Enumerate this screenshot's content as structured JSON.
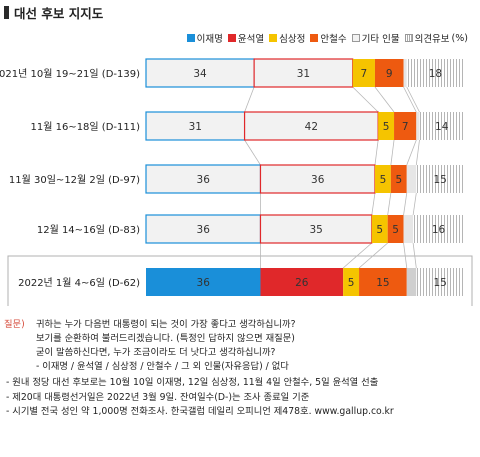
{
  "title": "대선 후보 지지도",
  "legend_unit": "(%)",
  "colors": {
    "lee": "#1a8fd9",
    "yoon": "#e0282a",
    "sim": "#f5c400",
    "ahn": "#ee5a10",
    "other": "#d6d6d6",
    "reserved": "#c8c8c8",
    "highlight_border": "#b0b0b0",
    "connector": "#b8b8b8"
  },
  "chart_data": {
    "type": "bar",
    "orientation": "horizontal",
    "stacked": true,
    "unit": "%",
    "legend_position": "top-right",
    "categories": [
      "2021년 10월 19~21일 (D-139)",
      "11월 16~18일 (D-111)",
      "11월 30일~12월 2일 (D-97)",
      "12월 14~16일 (D-83)",
      "2022년 1월 4~6일 (D-62)"
    ],
    "highlight_index": 4,
    "series": [
      {
        "name": "이재명",
        "values": [
          34,
          31,
          36,
          36,
          36
        ]
      },
      {
        "name": "윤석열",
        "values": [
          31,
          42,
          36,
          35,
          26
        ]
      },
      {
        "name": "심상정",
        "values": [
          7,
          5,
          5,
          5,
          5
        ]
      },
      {
        "name": "안철수",
        "values": [
          9,
          7,
          5,
          5,
          15
        ]
      },
      {
        "name": "기타 인물",
        "values": [
          1,
          1,
          3,
          3,
          3
        ]
      },
      {
        "name": "의견유보",
        "values": [
          18,
          14,
          15,
          16,
          15
        ]
      }
    ]
  },
  "question": {
    "label": "질문)",
    "lines": [
      "귀하는 누가 다음번 대통령이 되는 것이 가장 좋다고 생각하십니까?",
      "보기를 순환하여 불러드리겠습니다. (특정인 답하지 않으면 재질문)",
      "굳이 말씀하신다면, 누가 조금이라도 더 낫다고 생각하십니까?",
      "- 이재명 / 윤석열 / 심상정 / 안철수 / 그 외 인물(자유응답) / 없다"
    ]
  },
  "footnotes": [
    "- 원내 정당 대선 후보로는 10월 10일 이재명, 12일 심상정, 11월 4일 안철수, 5일 윤석열 선출",
    "- 제20대 대통령선거일은 2022년 3월 9일. 잔여일수(D-)는 조사 종료일 기준",
    "- 시기별 전국 성인 약 1,000명 전화조사. 한국갤럽 데일리 오피니언 제478호. www.gallup.co.kr"
  ]
}
